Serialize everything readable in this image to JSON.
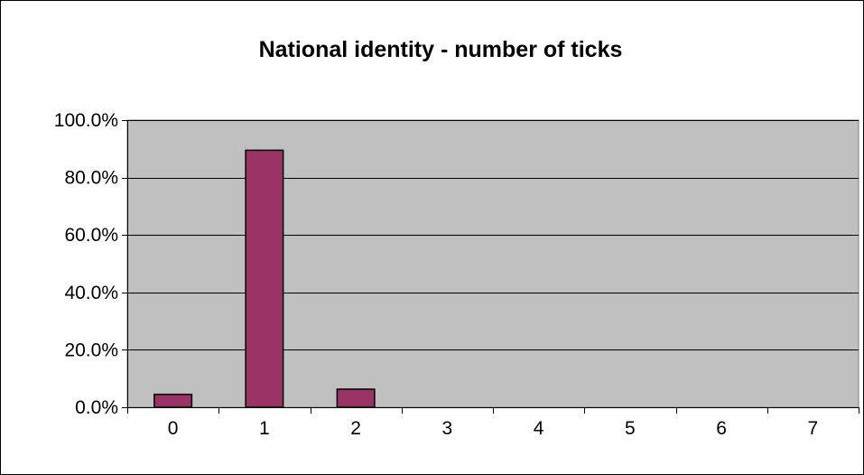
{
  "chart_data": {
    "type": "bar",
    "title": "National identity - number of ticks",
    "xlabel": "",
    "ylabel": "",
    "categories": [
      "0",
      "1",
      "2",
      "3",
      "4",
      "5",
      "6",
      "7"
    ],
    "values": [
      4.5,
      89.5,
      6.3,
      0,
      0,
      0,
      0,
      0
    ],
    "ylim": [
      0,
      100
    ],
    "yticks": [
      0,
      20,
      40,
      60,
      80,
      100
    ],
    "ytick_labels": [
      "0.0%",
      "20.0%",
      "40.0%",
      "60.0%",
      "80.0%",
      "100.0%"
    ],
    "grid": true,
    "legend": "none",
    "colors": {
      "bar": "#993366",
      "plot_background": "#c0c0c0",
      "gridline": "#000000"
    }
  }
}
